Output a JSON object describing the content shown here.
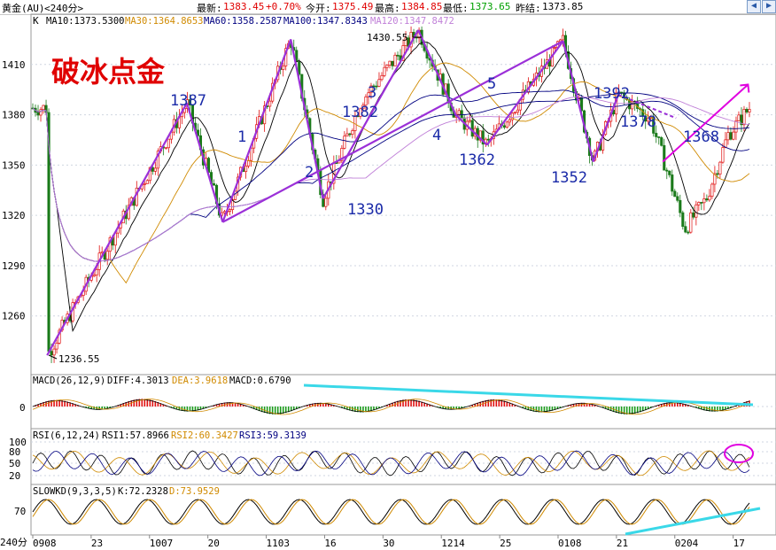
{
  "header": {
    "instrument": "黄金(AU)",
    "period": "<240分>",
    "latest_label": "最新:",
    "latest_value": "1383.45",
    "change": "+0.70%",
    "open_label": "今开:",
    "open_value": "1375.49",
    "high_label": "最高:",
    "high_value": "1384.85",
    "low_label": "最低:",
    "low_value": "1373.65",
    "prev_label": "昨结:",
    "prev_value": "1373.85",
    "prev_icon": "arrow-left-icon",
    "next_icon": "arrow-right-icon"
  },
  "main_panel": {
    "k_label": "K",
    "ma_legend": [
      {
        "name": "MA10",
        "value": "1373.5300",
        "color": "#000000"
      },
      {
        "name": "MA30",
        "value": "1364.8653",
        "color": "#d08a00"
      },
      {
        "name": "MA60",
        "value": "1358.2587",
        "color": "#000080"
      },
      {
        "name": "MA100",
        "value": "1347.8343",
        "color": "#000080"
      },
      {
        "name": "MA120",
        "value": "1347.8472",
        "color": "#c080d8"
      }
    ],
    "title_annotation": "破冰点金",
    "annotations": [
      {
        "text": "1387",
        "color": "#1a2aa8"
      },
      {
        "text": "1",
        "color": "#1a2aa8"
      },
      {
        "text": "2",
        "color": "#1a2aa8"
      },
      {
        "text": "1382",
        "color": "#1a2aa8"
      },
      {
        "text": "3",
        "color": "#1a2aa8"
      },
      {
        "text": "1330",
        "color": "#1a2aa8"
      },
      {
        "text": "1430.55",
        "color": "#000000"
      },
      {
        "text": "4",
        "color": "#1a2aa8"
      },
      {
        "text": "5",
        "color": "#1a2aa8"
      },
      {
        "text": "1362",
        "color": "#1a2aa8"
      },
      {
        "text": "1352",
        "color": "#1a2aa8"
      },
      {
        "text": "1392",
        "color": "#1a2aa8"
      },
      {
        "text": "1378",
        "color": "#1a2aa8"
      },
      {
        "text": "1368",
        "color": "#1a2aa8"
      },
      {
        "text": "1236.55",
        "color": "#000000"
      }
    ]
  },
  "macd_panel": {
    "label": "MACD(26,12,9)",
    "diff": "DIFF:4.3013",
    "dea": "DEA:3.9618",
    "macd": "MACD:0.6790",
    "zero_tick": "0"
  },
  "rsi_panel": {
    "label": "RSI(6,12,24)",
    "rsi1": "RSI1:57.8966",
    "rsi2": "RSI2:60.3427",
    "rsi3": "RSI3:59.3139"
  },
  "kd_panel": {
    "label": "SLOWKD(9,3,3,5)",
    "k": "K:72.2328",
    "d": "D:73.9529"
  },
  "period_label": "240分",
  "chart_data": [
    {
      "type": "candlestick",
      "title": "",
      "ylabel": "",
      "yticks": [
        1260,
        1290,
        1320,
        1350,
        1380,
        1410
      ],
      "ylim": [
        1225,
        1440
      ],
      "xticks": [
        "0908",
        "23",
        "1007",
        "20",
        "1103",
        "16",
        "30",
        "1214",
        "25",
        "0108",
        "21",
        "0204",
        "17"
      ],
      "grid": true,
      "pivots": [
        {
          "x": 0.02,
          "y": 1236.55
        },
        {
          "x": 0.215,
          "y": 1387
        },
        {
          "x": 0.265,
          "y": 1316
        },
        {
          "x": 0.36,
          "y": 1425
        },
        {
          "x": 0.405,
          "y": 1330
        },
        {
          "x": 0.458,
          "y": 1388
        },
        {
          "x": 0.538,
          "y": 1430.55
        },
        {
          "x": 0.59,
          "y": 1380
        },
        {
          "x": 0.634,
          "y": 1362
        },
        {
          "x": 0.74,
          "y": 1424
        },
        {
          "x": 0.782,
          "y": 1352
        },
        {
          "x": 0.817,
          "y": 1392
        },
        {
          "x": 0.862,
          "y": 1378
        },
        {
          "x": 0.91,
          "y": 1312
        },
        {
          "x": 0.94,
          "y": 1330
        },
        {
          "x": 0.97,
          "y": 1368
        },
        {
          "x": 1.0,
          "y": 1384
        }
      ]
    },
    {
      "type": "bar",
      "title": "MACD(26,12,9)",
      "yticks": [
        0
      ],
      "ylim": [
        -20,
        20
      ]
    },
    {
      "type": "line",
      "title": "RSI(6,12,24)",
      "yticks": [
        20,
        50,
        80,
        100
      ],
      "ylim": [
        10,
        105
      ]
    },
    {
      "type": "line",
      "title": "SLOWKD(9,3,3,5)",
      "yticks": [
        70
      ],
      "ylim": [
        0,
        100
      ]
    }
  ]
}
